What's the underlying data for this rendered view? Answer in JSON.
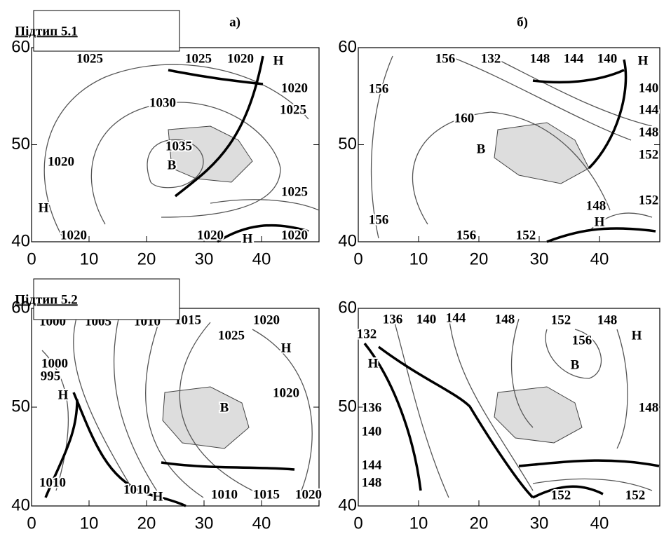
{
  "figure": {
    "panels": [
      {
        "title": "Підтип 5.1",
        "label": "а)",
        "xlim": [
          0,
          50
        ],
        "ylim": [
          40,
          60
        ],
        "xticks": [
          0,
          10,
          20,
          30,
          40
        ],
        "yticks": [
          40,
          50,
          60
        ],
        "labels": [
          "1025",
          "1025",
          "1020",
          "Н",
          "1020",
          "1025",
          "1030",
          "1035",
          "В",
          "1020",
          "Н",
          "1025",
          "1020",
          "1020",
          "Н",
          "1020"
        ]
      },
      {
        "label": "б)",
        "xlim": [
          0,
          50
        ],
        "ylim": [
          40,
          60
        ],
        "xticks": [
          0,
          10,
          20,
          30,
          40
        ],
        "yticks": [
          40,
          50,
          60
        ],
        "labels": [
          "156",
          "156",
          "132",
          "148",
          "144",
          "140",
          "Н",
          "140",
          "144",
          "148",
          "152",
          "160",
          "В",
          "152",
          "148",
          "Н",
          "156",
          "156",
          "152"
        ]
      },
      {
        "title": "Підтип 5.2",
        "xlim": [
          0,
          50
        ],
        "ylim": [
          40,
          60
        ],
        "xticks": [
          0,
          10,
          20,
          30,
          40
        ],
        "yticks": [
          40,
          50,
          60
        ],
        "labels": [
          "1000",
          "1005",
          "1010",
          "1015",
          "1020",
          "1025",
          "Н",
          "1000",
          "995",
          "Н",
          "1020",
          "В",
          "1010",
          "1010",
          "Н",
          "1010",
          "1015",
          "1020"
        ]
      },
      {
        "xlim": [
          0,
          50
        ],
        "ylim": [
          40,
          60
        ],
        "xticks": [
          0,
          10,
          20,
          30,
          40
        ],
        "yticks": [
          40,
          50,
          60
        ],
        "labels": [
          "132",
          "136",
          "140",
          "144",
          "148",
          "152",
          "148",
          "Н",
          "156",
          "В",
          "Н",
          "136",
          "140",
          "148",
          "144",
          "148",
          "152",
          "152"
        ]
      }
    ]
  }
}
